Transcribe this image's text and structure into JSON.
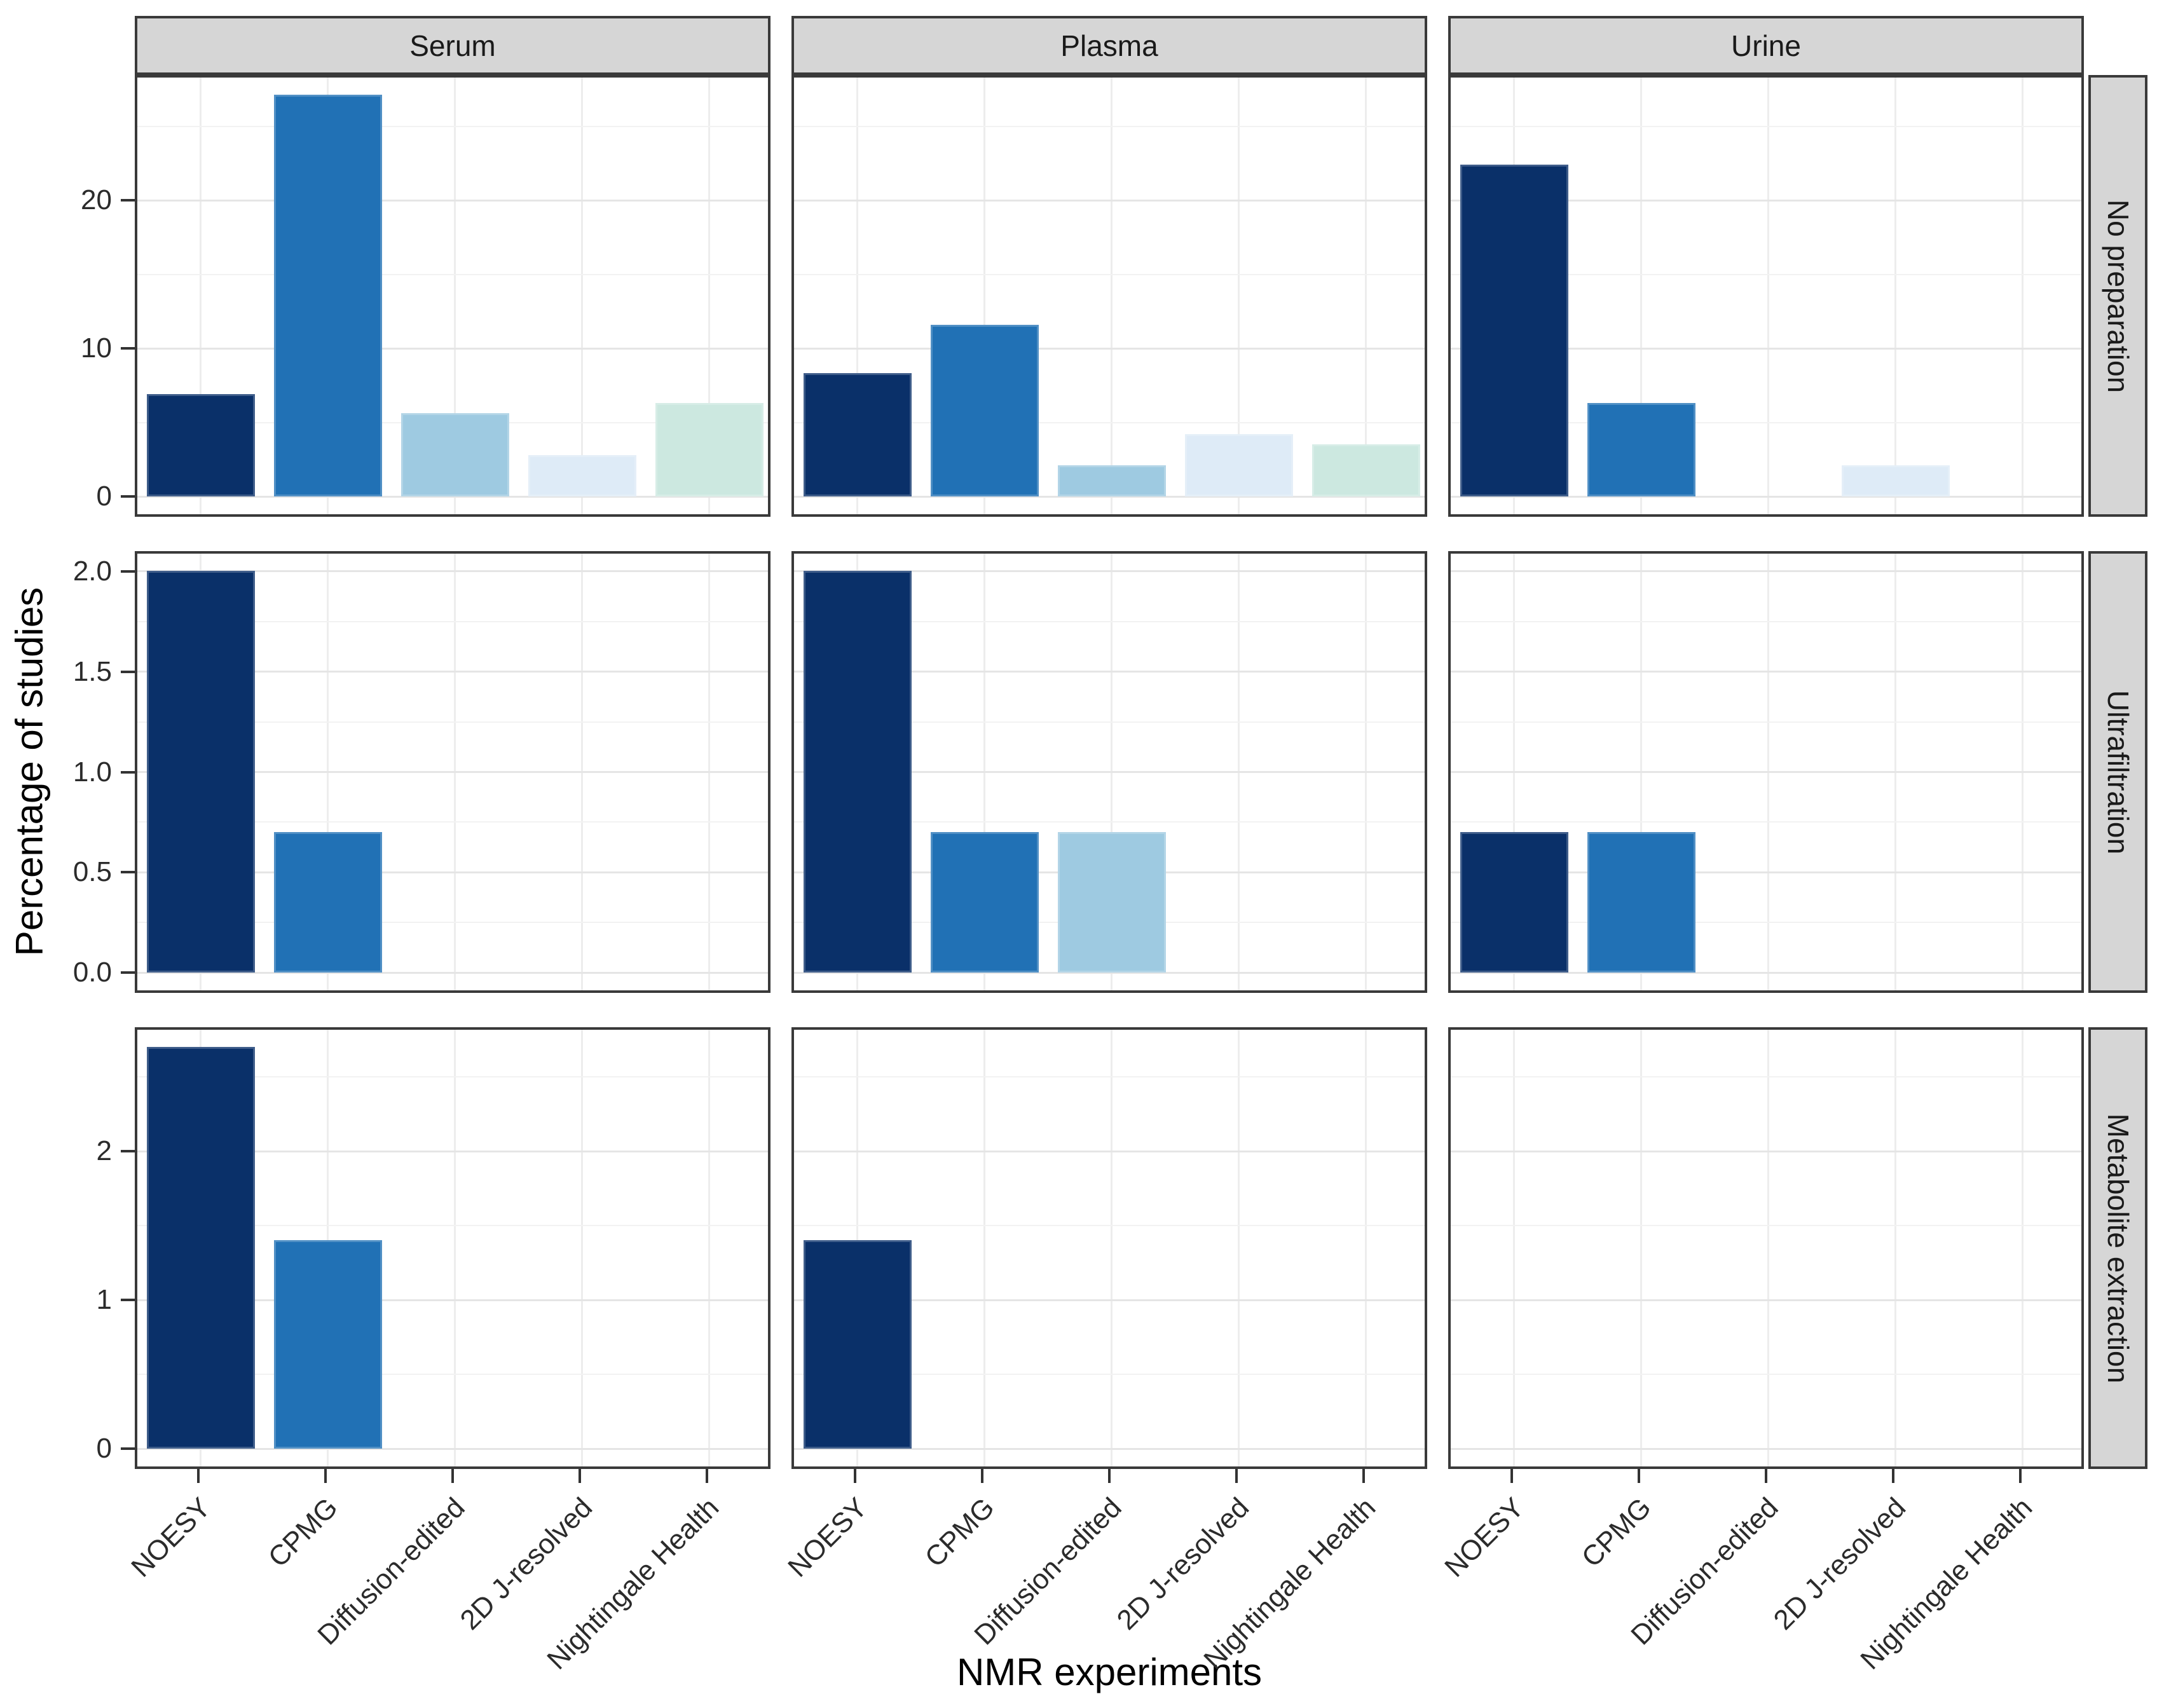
{
  "chart_data": {
    "type": "bar",
    "title": "",
    "xlabel": "NMR experiments",
    "ylabel": "Percentage of studies",
    "legend_position": "none",
    "grid": true,
    "facet_columns": [
      "Serum",
      "Plasma",
      "Urine"
    ],
    "facet_rows": [
      "No preparation",
      "Ultrafiltration",
      "Metabolite extraction"
    ],
    "categories": [
      "NOESY",
      "CPMG",
      "Diffusion-edited",
      "2D J-resolved",
      "Nightingale Health"
    ],
    "palette": [
      "#0a3069",
      "#2171b5",
      "#9ecae1",
      "#deebf7",
      "#cce8e0"
    ],
    "rows": [
      {
        "label": "No preparation",
        "ylim": [
          0,
          28.5
        ],
        "ticks": [
          0,
          10,
          20
        ],
        "tick_labels": [
          "0",
          "10",
          "20"
        ],
        "minor_ticks": [
          5,
          15,
          25
        ],
        "ymax": 27.1,
        "panels": [
          {
            "column": "Serum",
            "values": [
              6.9,
              27.1,
              5.6,
              2.8,
              6.3
            ]
          },
          {
            "column": "Plasma",
            "values": [
              8.3,
              11.6,
              2.1,
              4.2,
              3.5
            ]
          },
          {
            "column": "Urine",
            "values": [
              22.4,
              6.3,
              0,
              2.1,
              0
            ]
          }
        ]
      },
      {
        "label": "Ultrafiltration",
        "ylim": [
          0,
          2.1
        ],
        "ticks": [
          0,
          0.5,
          1,
          1.5,
          2
        ],
        "tick_labels": [
          "0.0",
          "0.5",
          "1.0",
          "1.5",
          "2.0"
        ],
        "minor_ticks": [
          0.25,
          0.75,
          1.25,
          1.75
        ],
        "ymax": 2.0,
        "panels": [
          {
            "column": "Serum",
            "values": [
              2.0,
              0.7,
              0,
              0,
              0
            ]
          },
          {
            "column": "Plasma",
            "values": [
              2.0,
              0.7,
              0.7,
              0,
              0
            ]
          },
          {
            "column": "Urine",
            "values": [
              0.7,
              0.7,
              0,
              0,
              0
            ]
          }
        ]
      },
      {
        "label": "Metabolite extraction",
        "ylim": [
          0,
          2.84
        ],
        "ticks": [
          0,
          1,
          2
        ],
        "tick_labels": [
          "0",
          "1",
          "2"
        ],
        "minor_ticks": [
          0.5,
          1.5,
          2.5
        ],
        "ymax": 2.7,
        "panels": [
          {
            "column": "Serum",
            "values": [
              2.7,
              1.4,
              0,
              0,
              0
            ]
          },
          {
            "column": "Plasma",
            "values": [
              1.4,
              0,
              0,
              0,
              0
            ]
          },
          {
            "column": "Urine",
            "values": [
              0,
              0,
              0,
              0,
              0
            ]
          }
        ]
      }
    ]
  },
  "styles": {
    "background": "#ffffff",
    "strip_bg": "#d6d6d6",
    "strip_border": "#3a3a3a",
    "panel_border": "#3a3a3a",
    "grid_major": "#e5e5e5",
    "grid_minor": "#f2f2f2",
    "tick_color": "#333333",
    "text_color": "#1a1a1a"
  }
}
